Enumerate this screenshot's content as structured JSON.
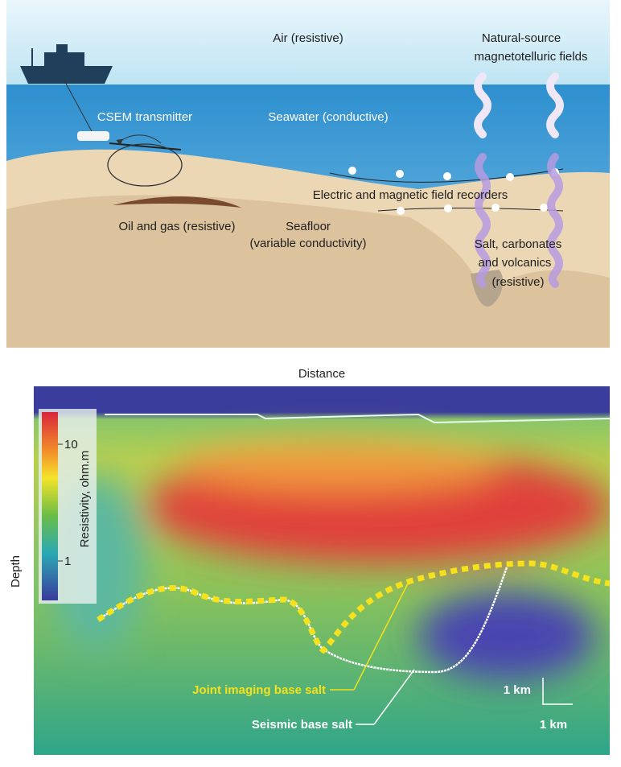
{
  "top_panel": {
    "air": "Air (resistive)",
    "mt_fields": [
      "Natural-source",
      "magnetotelluric fields"
    ],
    "transmitter": "CSEM transmitter",
    "seawater": "Seawater (conductive)",
    "recorders": "Electric and magnetic field recorders",
    "oil_gas": "Oil and gas (resistive)",
    "seafloor": [
      "Seafloor",
      "(variable conductivity)"
    ],
    "salt": [
      "Salt, carbonates",
      "and volcanics",
      "(resistive)"
    ]
  },
  "bottom_panel": {
    "x_label": "Distance",
    "y_label": "Depth",
    "colorbar": {
      "label": "Resistivity, ohm.m",
      "ticks": [
        "10",
        "1"
      ]
    },
    "joint_label": "Joint imaging base salt",
    "seismic_label": "Seismic base salt",
    "scale_vertical": "1 km",
    "scale_horizontal": "1 km"
  }
}
